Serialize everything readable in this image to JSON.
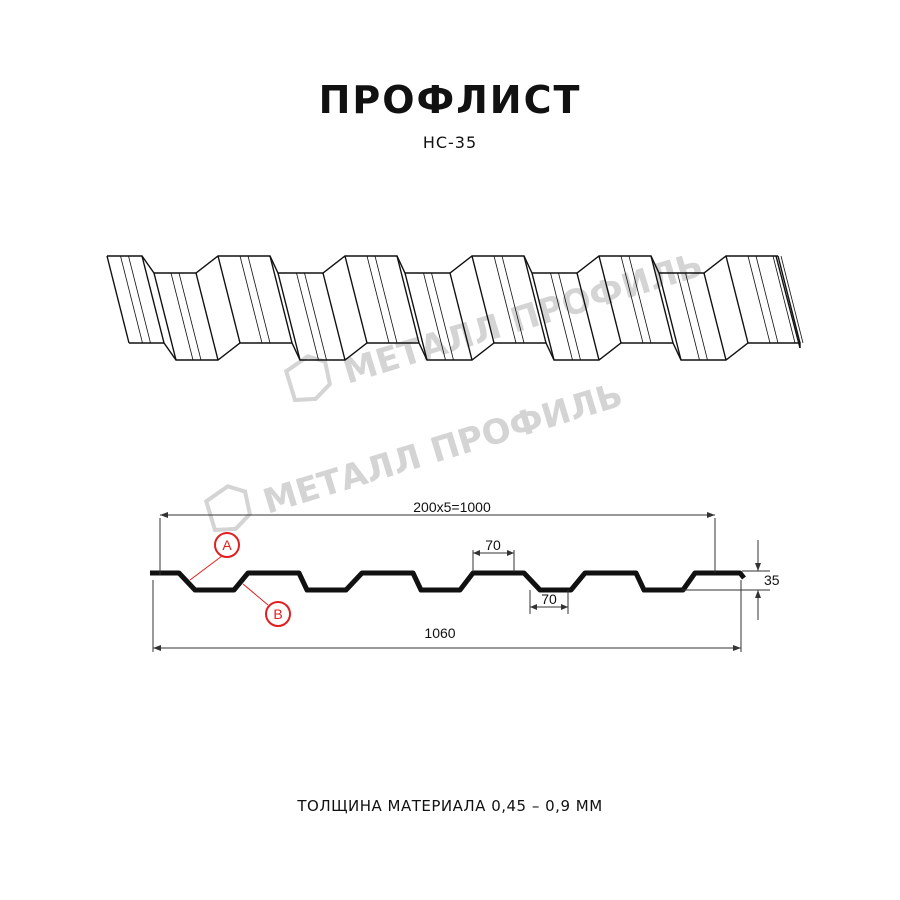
{
  "header": {
    "title": "ПРОФЛИСТ",
    "subtitle": "НС-35"
  },
  "watermark": {
    "text": "МЕТАЛЛ ПРОФИЛЬ"
  },
  "drawing": {
    "dimensions": {
      "pitch_total": "200x5=1000",
      "crest_width": "70",
      "valley_width": "70",
      "height": "35",
      "overall_width": "1060"
    },
    "callouts": {
      "a": "A",
      "b": "B"
    },
    "callout_color": "#e02020"
  },
  "footer": {
    "thickness": "ТОЛЩИНА МАТЕРИАЛА 0,45 – 0,9 ММ"
  }
}
